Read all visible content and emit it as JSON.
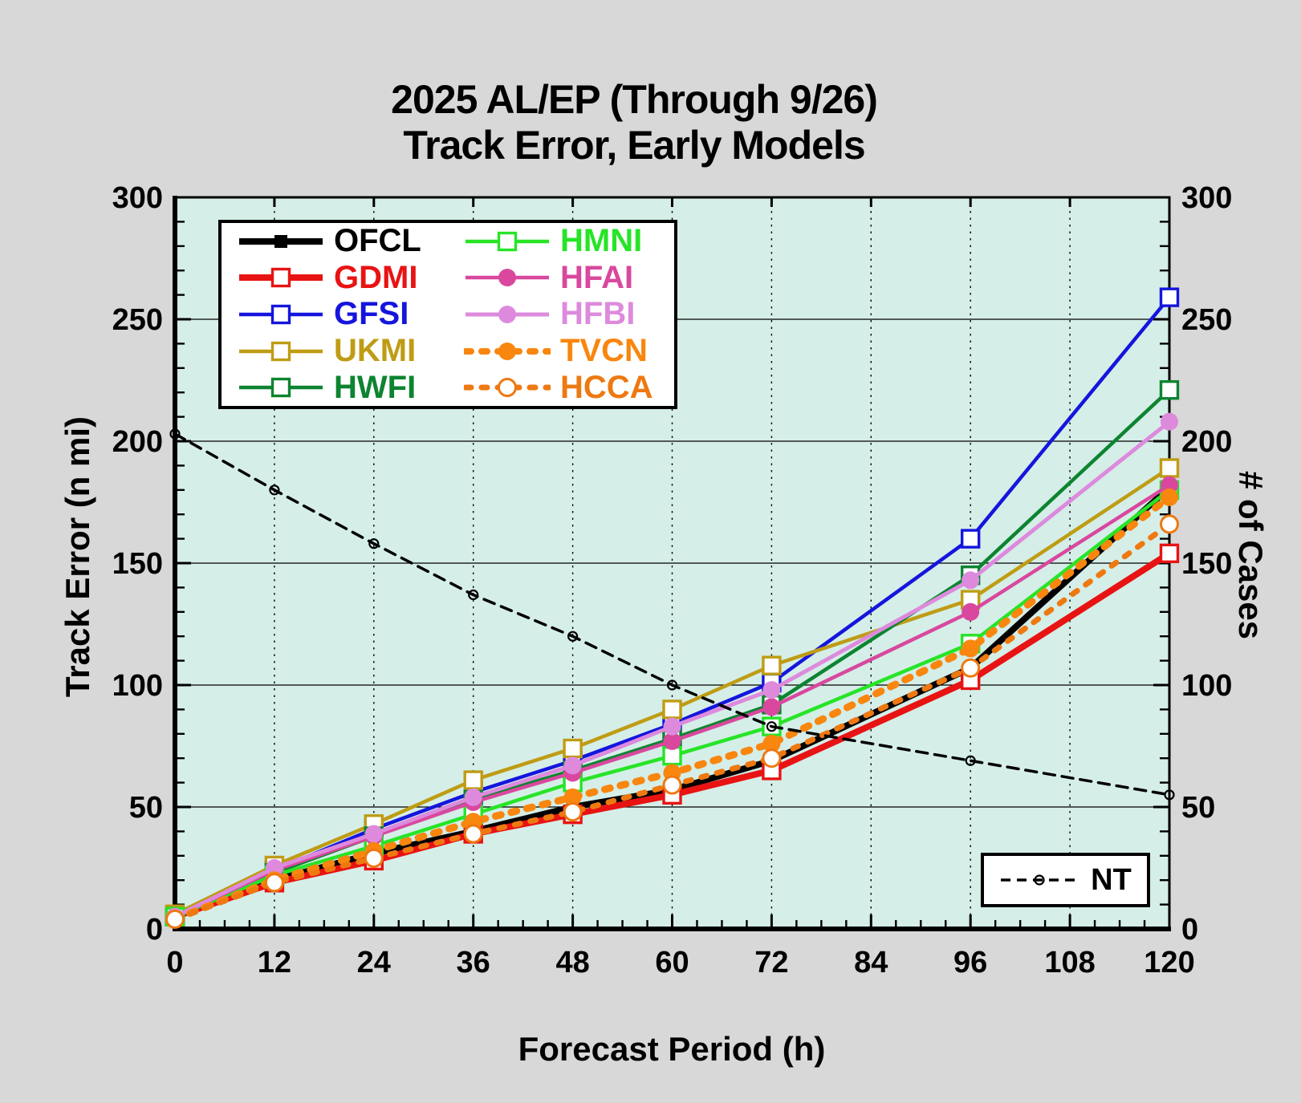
{
  "title": {
    "line1": "2025 AL/EP (Through 9/26)",
    "line2": "Track Error, Early Models"
  },
  "axes": {
    "x": {
      "label": "Forecast Period (h)",
      "min": 0,
      "max": 120,
      "major_step": 12,
      "minor_step": 3,
      "ticks": [
        "0",
        "12",
        "24",
        "36",
        "48",
        "60",
        "72",
        "84",
        "96",
        "108",
        "120"
      ]
    },
    "y_left": {
      "label": "Track Error (n mi)",
      "min": 0,
      "max": 300,
      "major_step": 50,
      "minor_step": 10,
      "ticks": [
        "0",
        "50",
        "100",
        "150",
        "200",
        "250",
        "300"
      ]
    },
    "y_right": {
      "label": "# of Cases",
      "min": 0,
      "max": 300,
      "major_step": 50,
      "minor_step": 10,
      "ticks": [
        "0",
        "50",
        "100",
        "150",
        "200",
        "250",
        "300"
      ]
    }
  },
  "colors": {
    "page_bg": "#d8d8d8",
    "plot_bg": "#d5eee8",
    "frame": "#000000"
  },
  "chart_data": {
    "type": "line",
    "title": "2025 AL/EP (Through 9/26) Track Error, Early Models",
    "xlabel": "Forecast Period (h)",
    "ylabel_left": "Track Error (n mi)",
    "ylabel_right": "# of Cases",
    "x": [
      0,
      12,
      24,
      36,
      48,
      60,
      72,
      96,
      120
    ],
    "x_range": [
      0,
      120
    ],
    "y_range": [
      0,
      300
    ],
    "grid": {
      "horizontal": "solid",
      "vertical": "dotted"
    },
    "legend_main_position": "top-left",
    "legend_nt_position": "bottom-right",
    "series": [
      {
        "name": "OFCL",
        "color": "#000000",
        "width": 8,
        "line": "solid",
        "marker": "square_filled",
        "axis": "left",
        "values": [
          6,
          20,
          31,
          40,
          50,
          57,
          69,
          107,
          181
        ]
      },
      {
        "name": "GDMI",
        "color": "#e81313",
        "width": 8,
        "line": "solid",
        "marker": "square_open",
        "axis": "left",
        "values": [
          5,
          19,
          28,
          39,
          47,
          55,
          65,
          102,
          154
        ]
      },
      {
        "name": "GFSI",
        "color": "#1515dd",
        "width": 4.5,
        "line": "solid",
        "marker": "square_open",
        "axis": "left",
        "values": [
          5,
          24,
          41,
          56,
          69,
          84,
          101,
          160,
          259
        ]
      },
      {
        "name": "UKMI",
        "color": "#bf9c14",
        "width": 4.5,
        "line": "solid",
        "marker": "square_open",
        "axis": "left",
        "values": [
          6,
          26,
          43,
          61,
          74,
          90,
          108,
          135,
          189
        ]
      },
      {
        "name": "HWFI",
        "color": "#0d8430",
        "width": 4.5,
        "line": "solid",
        "marker": "square_open",
        "axis": "left",
        "values": [
          5,
          23,
          38,
          53,
          65,
          78,
          92,
          145,
          221
        ]
      },
      {
        "name": "HMNI",
        "color": "#27e427",
        "width": 4.5,
        "line": "solid",
        "marker": "square_open",
        "axis": "left",
        "values": [
          5,
          22,
          34,
          47,
          60,
          71,
          83,
          117,
          180
        ]
      },
      {
        "name": "HFAI",
        "color": "#d9489e",
        "width": 4.5,
        "line": "solid",
        "marker": "circle_filled",
        "axis": "left",
        "values": [
          5,
          24,
          38,
          52,
          64,
          77,
          91,
          130,
          182
        ]
      },
      {
        "name": "HFBI",
        "color": "#dd8add",
        "width": 5,
        "line": "solid",
        "marker": "circle_filled",
        "axis": "left",
        "values": [
          5,
          25,
          39,
          54,
          67,
          83,
          98,
          143,
          208
        ]
      },
      {
        "name": "TVCN",
        "color": "#f9860e",
        "width": 9,
        "line": "dotted",
        "marker": "circle_filled",
        "axis": "left",
        "values": [
          4,
          20,
          32,
          44,
          54,
          64,
          76,
          115,
          177
        ]
      },
      {
        "name": "HCCA",
        "color": "#ee7911",
        "width": 7,
        "line": "dotted",
        "marker": "circle_open",
        "axis": "left",
        "values": [
          4,
          19,
          29,
          39,
          48,
          59,
          70,
          107,
          166
        ]
      },
      {
        "name": "NT",
        "color": "#000000",
        "width": 3.5,
        "line": "dashed",
        "marker": "circle_open_small",
        "axis": "right",
        "values": [
          203,
          180,
          158,
          137,
          120,
          100,
          83,
          69,
          55
        ]
      }
    ],
    "legend_main": [
      "OFCL",
      "GDMI",
      "GFSI",
      "UKMI",
      "HWFI",
      "HMNI",
      "HFAI",
      "HFBI",
      "TVCN",
      "HCCA"
    ],
    "legend_nt": [
      "NT"
    ]
  }
}
